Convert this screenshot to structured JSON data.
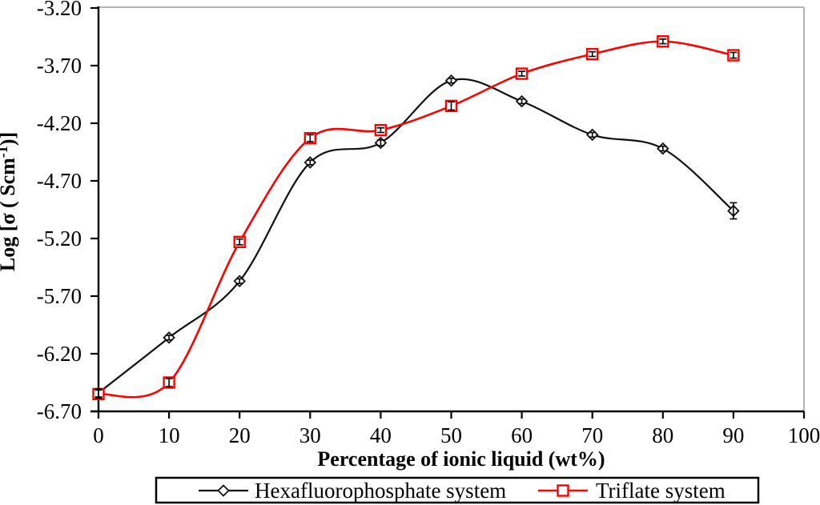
{
  "chart_data": {
    "type": "line",
    "title": "",
    "xlabel": "Percentage of ionic liquid (wt%)",
    "ylabel": "Log [σ ( Scm⁻¹)]",
    "ylabel_parts": {
      "pre": "Log [σ ( Scm",
      "sup": "-1",
      "post": ")]"
    },
    "xlim": [
      0,
      100
    ],
    "ylim": [
      -6.7,
      -3.2
    ],
    "x_tick_labels": [
      "0",
      "10",
      "20",
      "30",
      "40",
      "50",
      "60",
      "70",
      "80",
      "90",
      "100"
    ],
    "y_tick_labels": [
      "-3.20",
      "-3.70",
      "-4.20",
      "-4.70",
      "-5.20",
      "-5.70",
      "-6.20",
      "-6.70"
    ],
    "grid": false,
    "legend_position": "bottom",
    "x": [
      0,
      10,
      20,
      30,
      40,
      50,
      60,
      70,
      80,
      90
    ],
    "series": [
      {
        "name": "Hexafluorophosphate system",
        "color": "#111111",
        "marker": "diamond",
        "smooth": true,
        "values": [
          -6.54,
          -6.06,
          -5.57,
          -4.54,
          -4.37,
          -3.83,
          -4.01,
          -4.3,
          -4.42,
          -4.96
        ],
        "error_bars": [
          0.035,
          0.02,
          0.02,
          0.02,
          0.025,
          0.02,
          0.02,
          0.02,
          0.02,
          0.07
        ]
      },
      {
        "name": "Triflate system",
        "color": "#ff0000",
        "marker": "square",
        "smooth": true,
        "values": [
          -6.55,
          -6.45,
          -5.23,
          -4.33,
          -4.26,
          -4.05,
          -3.77,
          -3.6,
          -3.49,
          -3.61
        ],
        "error_bars": [
          0.035,
          0.035,
          0.025,
          0.03,
          0.02,
          0.035,
          0.02,
          0.02,
          0.02,
          0.025
        ]
      }
    ],
    "frame_border_color": "#b3b3b3",
    "axis_color": "#000000",
    "error_bar_color": "#000000"
  }
}
